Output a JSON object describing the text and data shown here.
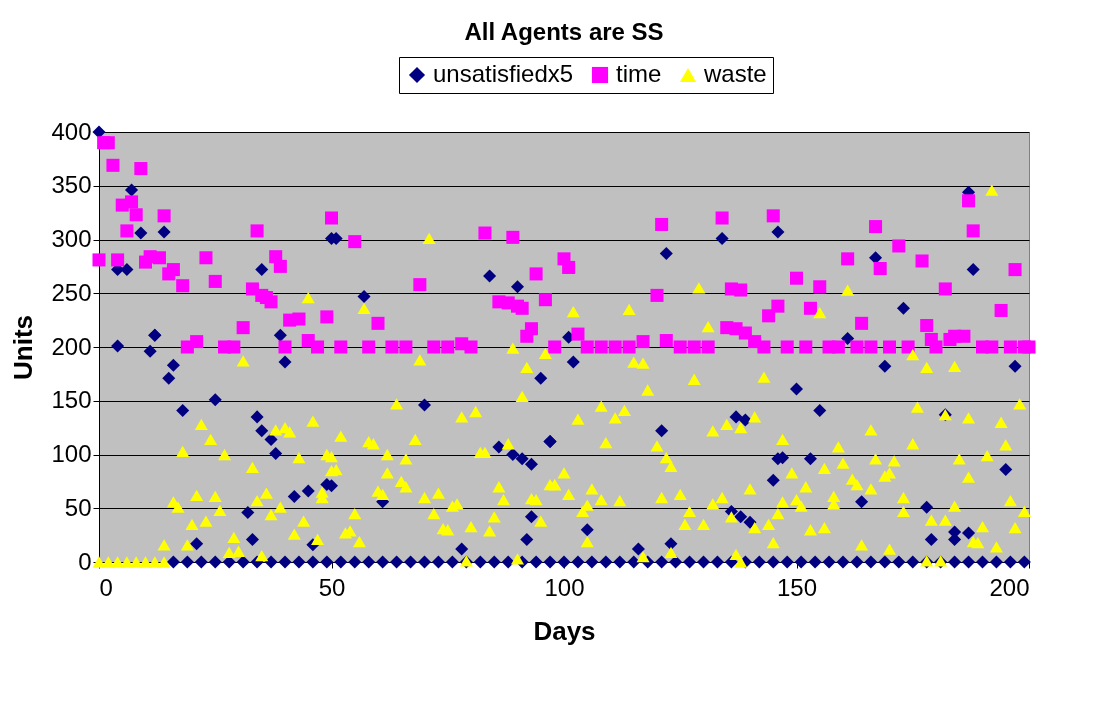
{
  "chart_data": {
    "type": "scatter",
    "title": "All Agents are SS",
    "xlabel": "Days",
    "ylabel": "Units",
    "xlim": [
      0,
      200
    ],
    "xticks": [
      0,
      50,
      100,
      150,
      200
    ],
    "ylim": [
      0,
      400
    ],
    "yticks": [
      0,
      50,
      100,
      150,
      200,
      250,
      300,
      350,
      400
    ],
    "grid": "y",
    "legend": "top",
    "series": [
      {
        "name": "unsatisfiedx5",
        "color": "#000080",
        "marker": "diamond",
        "x": [
          0,
          4,
          6,
          7,
          9,
          14,
          4,
          35,
          12,
          12,
          11,
          16,
          15,
          18,
          25,
          34,
          35,
          37,
          38,
          39,
          40,
          42,
          45,
          49,
          50,
          32,
          33,
          21,
          46,
          51,
          57,
          70,
          84,
          90,
          95,
          97,
          86,
          89,
          91,
          93,
          50,
          61,
          93,
          92,
          78,
          122,
          134,
          146,
          102,
          101,
          121,
          137,
          139,
          97,
          146,
          145,
          105,
          136,
          138,
          140,
          116,
          123,
          187,
          167,
          188,
          173,
          161,
          169,
          197,
          150,
          155,
          182,
          153,
          147,
          195,
          164,
          178,
          179,
          184,
          184,
          187,
          16,
          19,
          22,
          25,
          28,
          31,
          34,
          37,
          40,
          43,
          46,
          49,
          52,
          55,
          58,
          61,
          64,
          67,
          70,
          73,
          76,
          79,
          82,
          85,
          88,
          91,
          94,
          97,
          100,
          103,
          106,
          109,
          112,
          115,
          118,
          121,
          124,
          127,
          130,
          133,
          136,
          139,
          142,
          145,
          148,
          151,
          154,
          157,
          160,
          163,
          166,
          169,
          172,
          175,
          178,
          181,
          184,
          187,
          190,
          193,
          196,
          199
        ],
        "values": [
          400,
          201,
          272,
          346,
          306,
          307,
          272,
          272,
          211,
          211,
          196,
          183,
          171,
          141,
          151,
          135,
          122,
          114,
          101,
          211,
          186,
          61,
          66,
          72,
          301,
          46,
          21,
          17,
          16,
          301,
          247,
          146,
          266,
          256,
          171,
          112,
          107,
          100,
          96,
          91,
          71,
          56,
          42,
          21,
          12,
          287,
          301,
          307,
          186,
          209,
          122,
          135,
          132,
          112,
          96,
          76,
          30,
          47,
          42,
          37,
          12,
          17,
          344,
          283,
          272,
          236,
          208,
          182,
          182,
          161,
          141,
          137,
          96,
          97,
          86,
          56,
          51,
          21,
          21,
          28,
          27,
          0,
          0,
          0,
          0,
          0,
          0,
          0,
          0,
          0,
          0,
          0,
          0,
          0,
          0,
          0,
          0,
          0,
          0,
          0,
          0,
          0,
          0,
          0,
          0,
          0,
          0,
          0,
          0,
          0,
          0,
          0,
          0,
          0,
          0,
          0,
          0,
          0,
          0,
          0,
          0,
          0,
          0,
          0,
          0,
          0,
          0,
          0,
          0,
          0,
          0,
          0,
          0,
          0,
          0,
          0,
          0,
          0,
          0,
          0,
          0,
          0,
          0
        ]
      },
      {
        "name": "time",
        "color": "#ff00ff",
        "marker": "square",
        "x": [
          0,
          1,
          2,
          3,
          4,
          5,
          6,
          7,
          8,
          9,
          10,
          11,
          13,
          14,
          15,
          16,
          18,
          19,
          21,
          23,
          25,
          27,
          29,
          31,
          33,
          34,
          35,
          36,
          37,
          38,
          39,
          40,
          41,
          43,
          45,
          47,
          49,
          50,
          52,
          55,
          58,
          60,
          63,
          66,
          69,
          72,
          75,
          78,
          80,
          83,
          86,
          88,
          89,
          90,
          91,
          92,
          93,
          94,
          96,
          98,
          100,
          101,
          103,
          105,
          108,
          111,
          114,
          117,
          120,
          121,
          122,
          125,
          128,
          131,
          134,
          135,
          136,
          137,
          138,
          139,
          141,
          143,
          144,
          145,
          146,
          148,
          150,
          152,
          153,
          155,
          157,
          159,
          161,
          163,
          164,
          166,
          167,
          168,
          170,
          172,
          174,
          177,
          178,
          179,
          180,
          182,
          183,
          184,
          186,
          187,
          188,
          190,
          192,
          194,
          196,
          197,
          199,
          200
        ],
        "values": [
          281,
          390,
          390,
          369,
          281,
          332,
          308,
          335,
          323,
          366,
          279,
          284,
          283,
          322,
          268,
          272,
          257,
          200,
          205,
          283,
          261,
          200,
          200,
          218,
          254,
          308,
          248,
          246,
          242,
          284,
          275,
          200,
          225,
          226,
          206,
          200,
          228,
          320,
          200,
          298,
          200,
          222,
          200,
          200,
          258,
          200,
          200,
          203,
          200,
          306,
          242,
          241,
          302,
          238,
          236,
          210,
          217,
          268,
          244,
          200,
          282,
          274,
          212,
          200,
          200,
          200,
          200,
          205,
          248,
          314,
          206,
          200,
          200,
          200,
          320,
          218,
          254,
          217,
          253,
          213,
          205,
          200,
          229,
          322,
          238,
          200,
          264,
          200,
          236,
          256,
          200,
          200,
          282,
          200,
          222,
          200,
          312,
          273,
          200,
          294,
          200,
          280,
          220,
          207,
          200,
          254,
          207,
          210,
          210,
          336,
          308,
          200,
          200,
          234,
          200,
          272,
          200,
          200
        ]
      },
      {
        "name": "waste",
        "color": "#ffff00",
        "marker": "triangle",
        "x": [
          0,
          2,
          4,
          6,
          8,
          10,
          12,
          14,
          45,
          31,
          22,
          24,
          18,
          27,
          33,
          38,
          40,
          41,
          46,
          43,
          16,
          17,
          21,
          25,
          26,
          34,
          36,
          37,
          39,
          20,
          23,
          14,
          19,
          29,
          28,
          30,
          35,
          42,
          44,
          47,
          48,
          48,
          49,
          50,
          71,
          57,
          69,
          64,
          52,
          58,
          59,
          68,
          78,
          81,
          50,
          51,
          62,
          66,
          82,
          83,
          88,
          62,
          65,
          66,
          60,
          61,
          70,
          73,
          76,
          77,
          86,
          87,
          93,
          94,
          97,
          98,
          55,
          72,
          85,
          80,
          84,
          95,
          53,
          54,
          56,
          74,
          75,
          79,
          90,
          89,
          92,
          91,
          96,
          129,
          114,
          102,
          131,
          115,
          117,
          118,
          128,
          143,
          108,
          113,
          111,
          103,
          109,
          132,
          135,
          138,
          141,
          147,
          120,
          122,
          123,
          100,
          98,
          101,
          106,
          108,
          112,
          105,
          104,
          121,
          125,
          134,
          132,
          127,
          136,
          140,
          147,
          146,
          141,
          144,
          126,
          130,
          105,
          145,
          117,
          123,
          137,
          138,
          192,
          161,
          155,
          175,
          178,
          184,
          176,
          198,
          182,
          187,
          194,
          166,
          159,
          175,
          195,
          167,
          171,
          185,
          191,
          160,
          156,
          187,
          149,
          169,
          170,
          162,
          152,
          163,
          166,
          158,
          158,
          150,
          151,
          173,
          173,
          184,
          196,
          199,
          179,
          182,
          190,
          197,
          153,
          156,
          188,
          189,
          164,
          170,
          193,
          178,
          181
        ],
        "values": [
          0,
          0,
          0,
          0,
          0,
          0,
          0,
          0,
          246,
          187,
          128,
          114,
          103,
          100,
          88,
          123,
          125,
          121,
          131,
          97,
          56,
          51,
          62,
          61,
          48,
          57,
          64,
          44,
          51,
          35,
          38,
          16,
          16,
          23,
          9,
          10,
          6,
          26,
          38,
          21,
          65,
          60,
          100,
          85,
          301,
          236,
          188,
          147,
          117,
          112,
          110,
          114,
          135,
          140,
          98,
          86,
          100,
          96,
          102,
          102,
          110,
          83,
          75,
          70,
          66,
          63,
          60,
          64,
          52,
          54,
          70,
          58,
          59,
          58,
          72,
          72,
          45,
          45,
          42,
          33,
          29,
          38,
          27,
          29,
          19,
          31,
          30,
          1,
          3,
          199,
          181,
          154,
          194,
          255,
          235,
          233,
          219,
          186,
          185,
          160,
          170,
          172,
          145,
          141,
          134,
          133,
          111,
          122,
          128,
          125,
          135,
          114,
          108,
          97,
          89,
          83,
          72,
          63,
          68,
          58,
          57,
          53,
          47,
          60,
          63,
          60,
          54,
          47,
          42,
          68,
          56,
          45,
          32,
          35,
          35,
          35,
          19,
          18,
          5,
          9,
          7,
          0,
          346,
          253,
          232,
          193,
          181,
          182,
          144,
          147,
          137,
          134,
          130,
          123,
          107,
          110,
          109,
          96,
          94,
          96,
          99,
          92,
          87,
          79,
          83,
          80,
          83,
          77,
          70,
          72,
          68,
          61,
          54,
          58,
          52,
          60,
          47,
          52,
          57,
          47,
          39,
          39,
          33,
          32,
          30,
          32,
          19,
          18,
          16,
          12,
          14,
          1,
          1
        ]
      }
    ]
  }
}
